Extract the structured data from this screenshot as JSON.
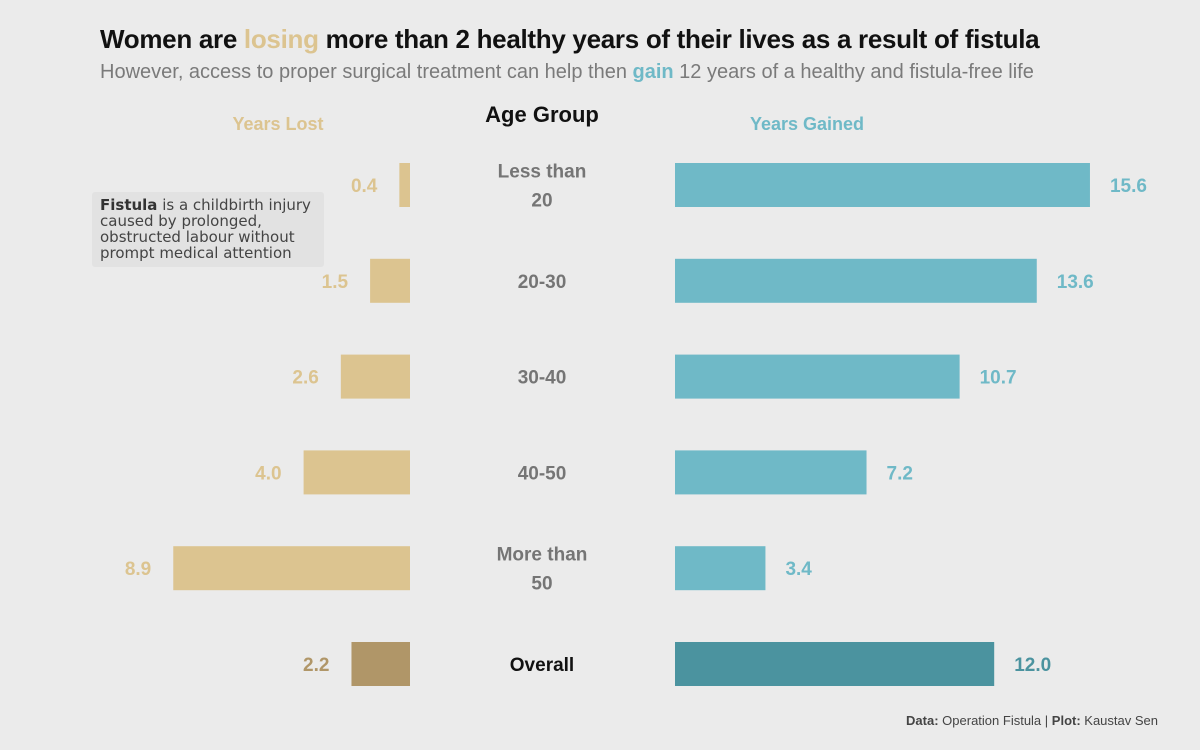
{
  "title": {
    "before": "Women are ",
    "highlight": "losing",
    "after": " more than 2 healthy years of their lives as a result of fistula"
  },
  "subtitle": {
    "before": "However, access to proper surgical treatment can help then ",
    "highlight": "gain",
    "after": " 12 years of a healthy and fistula-free life"
  },
  "note": {
    "bold": "Fistula",
    "text": " is a childbirth injury caused by prolonged, obstructed labour without prompt medical attention"
  },
  "caption": {
    "data_label": "Data:",
    "data_source": " Operation Fistula | ",
    "plot_label": "Plot:",
    "plot_author": " Kaustav Sen"
  },
  "colors": {
    "lost": "#dcc490",
    "lost_overall": "#b09668",
    "gained": "#6fb9c7",
    "gained_overall": "#4b939f",
    "category_text": "#757575",
    "overall_text": "#111111"
  },
  "chart_data": {
    "type": "bar",
    "orientation": "horizontal-diverging",
    "center_header": "Age Group",
    "categories": [
      [
        "Less than",
        "20"
      ],
      [
        "20-30"
      ],
      [
        "30-40"
      ],
      [
        "40-50"
      ],
      [
        "More than",
        "50"
      ],
      [
        "Overall"
      ]
    ],
    "series": [
      {
        "name": "Years Lost",
        "values": [
          0.4,
          1.5,
          2.6,
          4.0,
          8.9,
          2.2
        ]
      },
      {
        "name": "Years Gained",
        "values": [
          15.6,
          13.6,
          10.7,
          7.2,
          3.4,
          12.0
        ]
      }
    ],
    "value_labels": {
      "lost": [
        "0.4",
        "1.5",
        "2.6",
        "4.0",
        "8.9",
        "2.2"
      ],
      "gained": [
        "15.6",
        "13.6",
        "10.7",
        "7.2",
        "3.4",
        "12.0"
      ]
    }
  }
}
